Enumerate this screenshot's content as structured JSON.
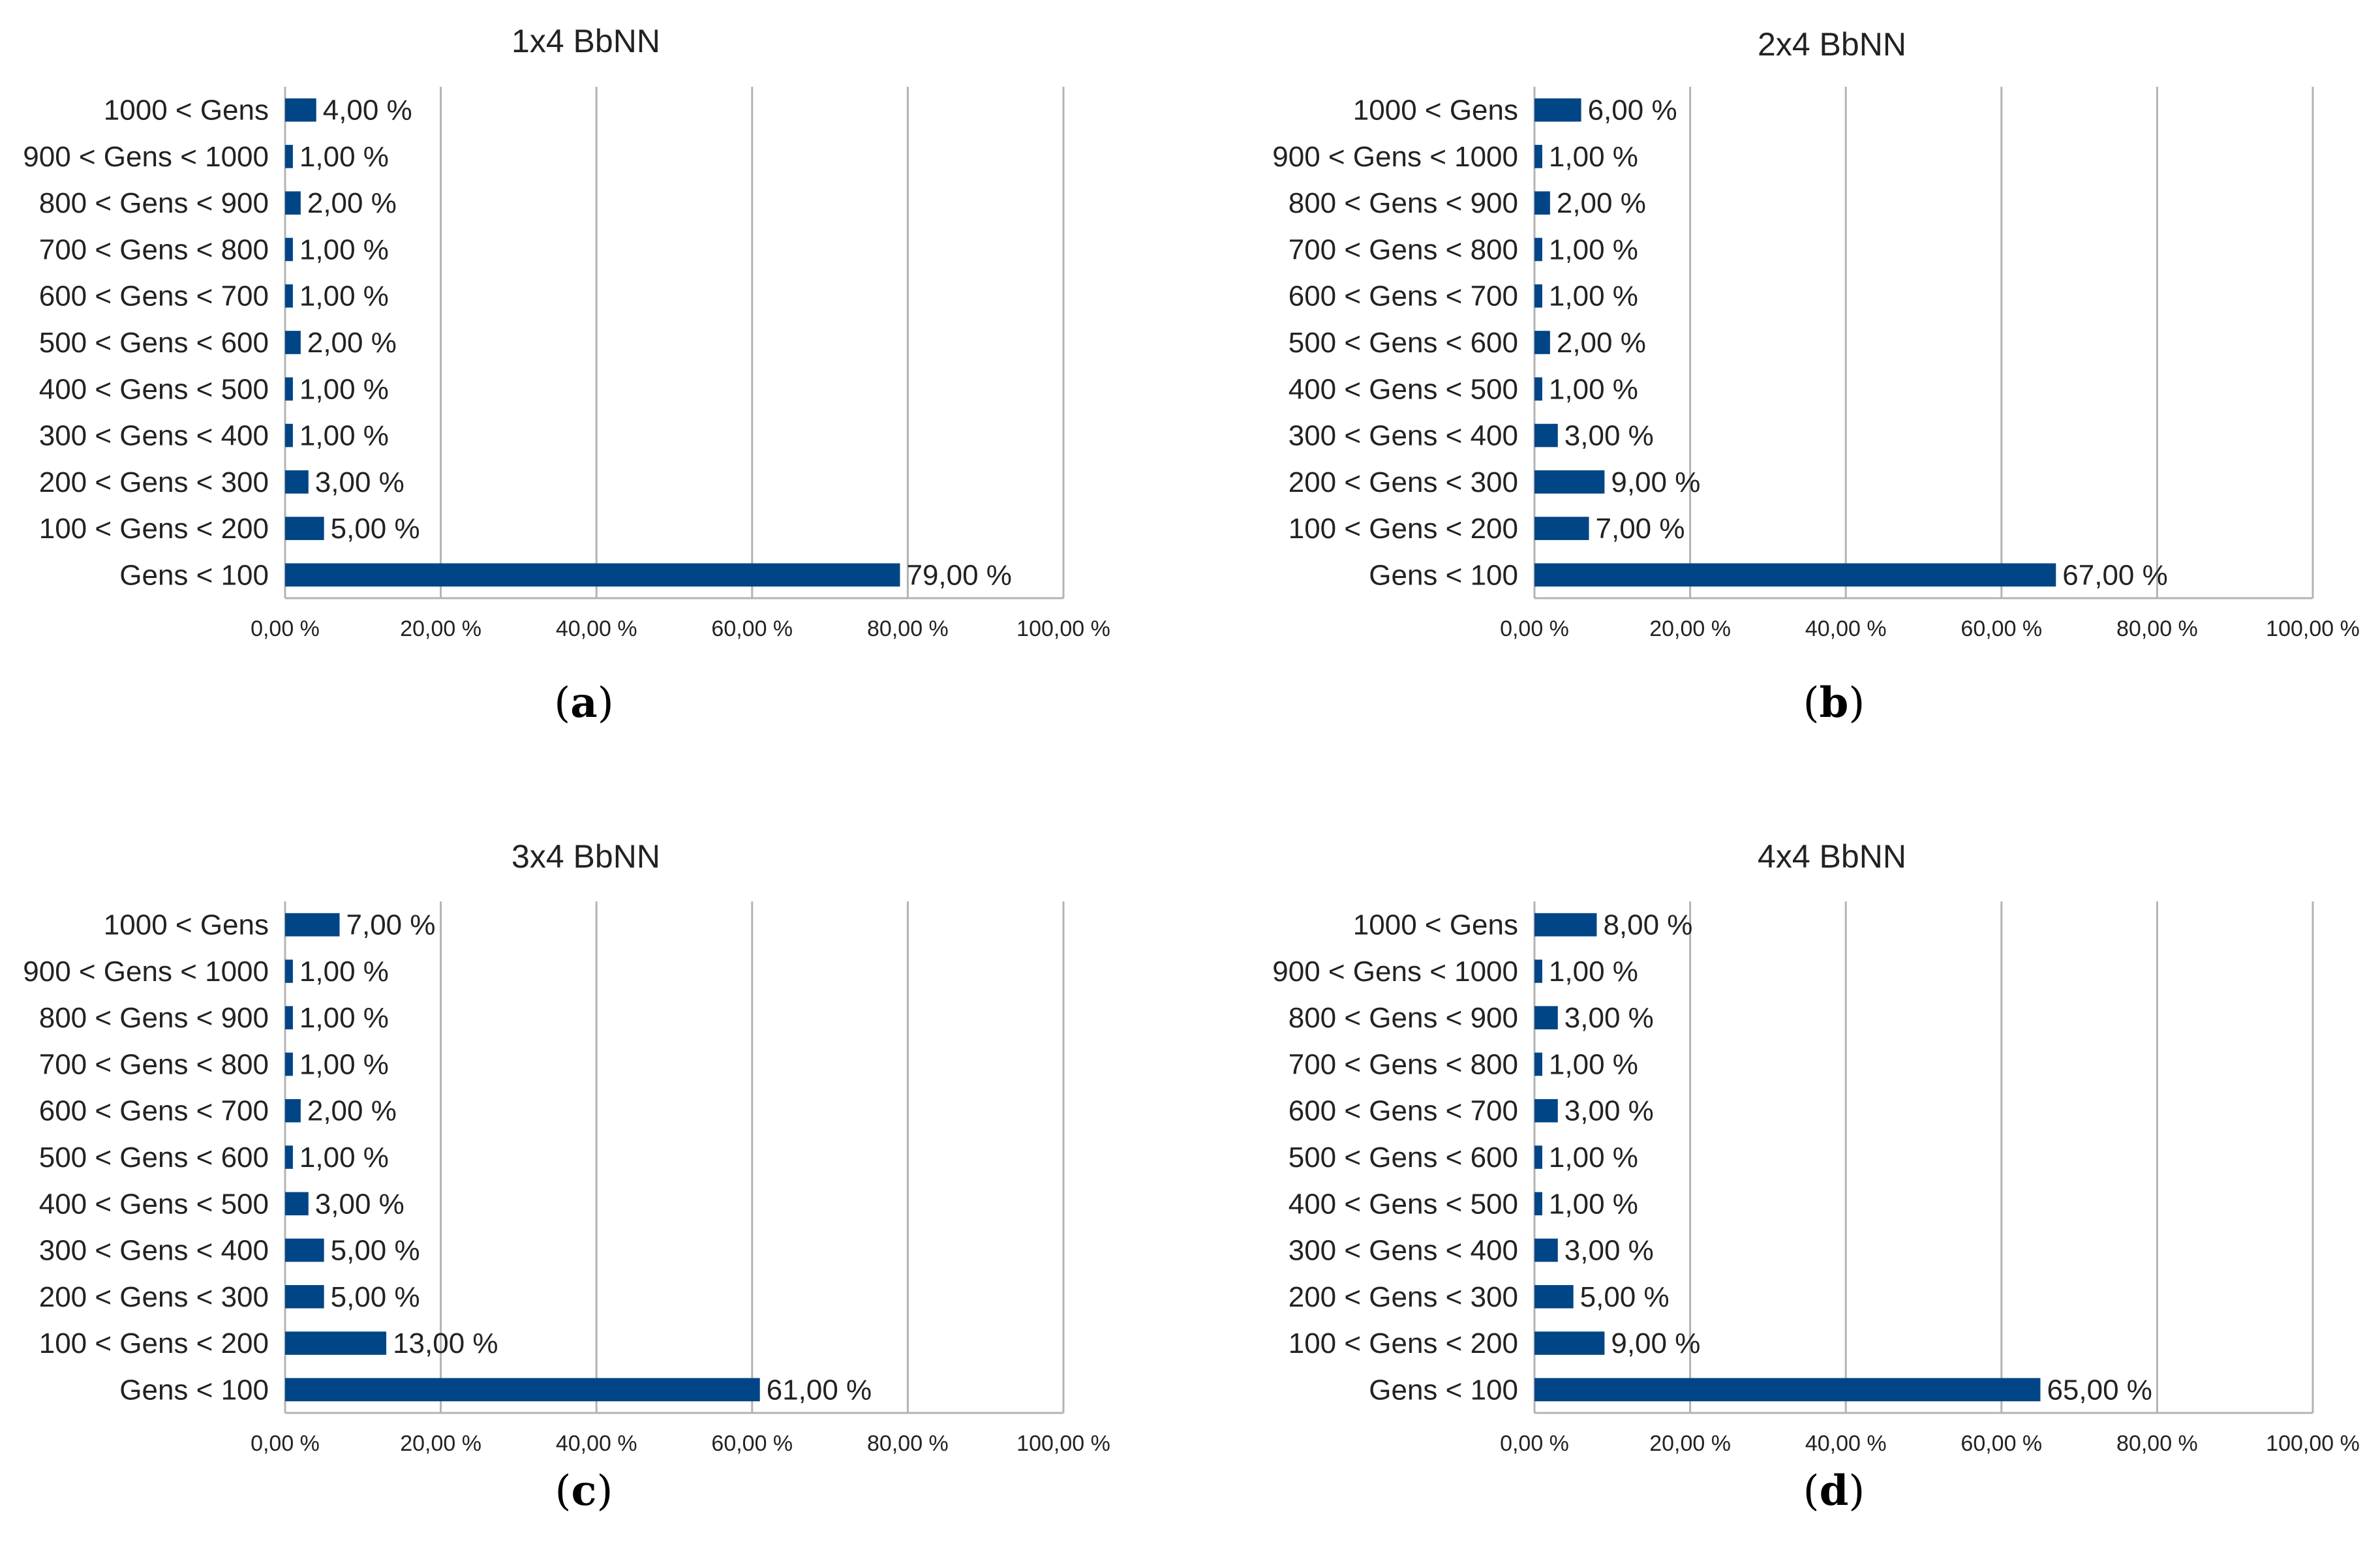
{
  "charts_meta": {
    "bar_color": "#004586",
    "grid_color": "#b3b3b3",
    "axis_color": "#b3b3b3"
  },
  "chart_data": [
    {
      "type": "bar",
      "orientation": "horizontal",
      "title": "1x4 BbNN",
      "caption_label": "a",
      "categories": [
        "1000 < Gens",
        "900 < Gens < 1000",
        "800 < Gens < 900",
        "700 < Gens < 800",
        "600 < Gens < 700",
        "500 < Gens < 600",
        "400 < Gens < 500",
        "300 < Gens < 400",
        "200 < Gens < 300",
        "100 < Gens < 200",
        "Gens < 100"
      ],
      "values": [
        4,
        1,
        2,
        1,
        1,
        2,
        1,
        1,
        3,
        5,
        79
      ],
      "value_labels": [
        "4,00 %",
        "1,00 %",
        "2,00 %",
        "1,00 %",
        "1,00 %",
        "2,00 %",
        "1,00 %",
        "1,00 %",
        "3,00 %",
        "5,00 %",
        "79,00 %"
      ],
      "xlim": [
        0,
        100
      ],
      "xticks": [
        "0,00 %",
        "20,00 %",
        "40,00 %",
        "60,00 %",
        "80,00 %",
        "100,00 %"
      ],
      "grid": true,
      "legend": "none"
    },
    {
      "type": "bar",
      "orientation": "horizontal",
      "title": "2x4 BbNN",
      "caption_label": "b",
      "categories": [
        "1000 < Gens",
        "900 < Gens < 1000",
        "800 < Gens < 900",
        "700 < Gens < 800",
        "600 < Gens < 700",
        "500 < Gens < 600",
        "400 < Gens < 500",
        "300 < Gens < 400",
        "200 < Gens < 300",
        "100 < Gens < 200",
        "Gens < 100"
      ],
      "values": [
        6,
        1,
        2,
        1,
        1,
        2,
        1,
        3,
        9,
        7,
        67
      ],
      "value_labels": [
        "6,00 %",
        "1,00 %",
        "2,00 %",
        "1,00 %",
        "1,00 %",
        "2,00 %",
        "1,00 %",
        "3,00 %",
        "9,00 %",
        "7,00 %",
        "67,00 %"
      ],
      "xlim": [
        0,
        100
      ],
      "xticks": [
        "0,00 %",
        "20,00 %",
        "40,00 %",
        "60,00 %",
        "80,00 %",
        "100,00 %"
      ],
      "grid": true,
      "legend": "none"
    },
    {
      "type": "bar",
      "orientation": "horizontal",
      "title": "3x4 BbNN",
      "caption_label": "c",
      "categories": [
        "1000 < Gens",
        "900 < Gens < 1000",
        "800 < Gens < 900",
        "700 < Gens < 800",
        "600 < Gens < 700",
        "500 < Gens < 600",
        "400 < Gens < 500",
        "300 < Gens < 400",
        "200 < Gens < 300",
        "100 < Gens < 200",
        "Gens < 100"
      ],
      "values": [
        7,
        1,
        1,
        1,
        2,
        1,
        3,
        5,
        5,
        13,
        61
      ],
      "value_labels": [
        "7,00 %",
        "1,00 %",
        "1,00 %",
        "1,00 %",
        "2,00 %",
        "1,00 %",
        "3,00 %",
        "5,00 %",
        "5,00 %",
        "13,00 %",
        "61,00 %"
      ],
      "xlim": [
        0,
        100
      ],
      "xticks": [
        "0,00 %",
        "20,00 %",
        "40,00 %",
        "60,00 %",
        "80,00 %",
        "100,00 %"
      ],
      "grid": true,
      "legend": "none"
    },
    {
      "type": "bar",
      "orientation": "horizontal",
      "title": "4x4 BbNN",
      "caption_label": "d",
      "categories": [
        "1000 < Gens",
        "900 < Gens < 1000",
        "800 < Gens < 900",
        "700 < Gens < 800",
        "600 < Gens < 700",
        "500 < Gens < 600",
        "400 < Gens < 500",
        "300 < Gens < 400",
        "200 < Gens < 300",
        "100 < Gens < 200",
        "Gens < 100"
      ],
      "values": [
        8,
        1,
        3,
        1,
        3,
        1,
        1,
        3,
        5,
        9,
        65
      ],
      "value_labels": [
        "8,00 %",
        "1,00 %",
        "3,00 %",
        "1,00 %",
        "3,00 %",
        "1,00 %",
        "1,00 %",
        "3,00 %",
        "5,00 %",
        "9,00 %",
        "65,00 %"
      ],
      "xlim": [
        0,
        100
      ],
      "xticks": [
        "0,00 %",
        "20,00 %",
        "40,00 %",
        "60,00 %",
        "80,00 %",
        "100,00 %"
      ],
      "grid": true,
      "legend": "none"
    }
  ]
}
